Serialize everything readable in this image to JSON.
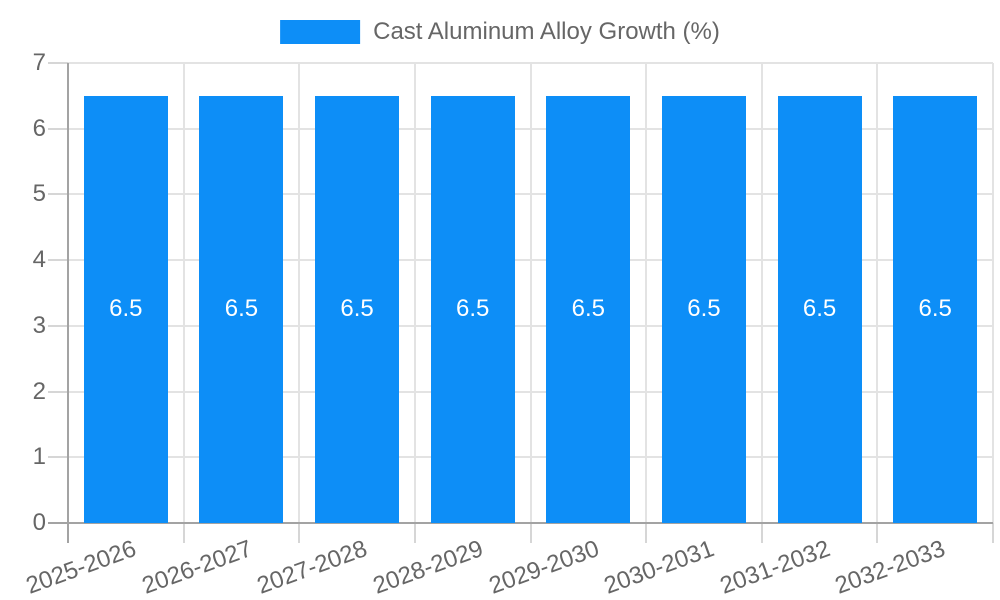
{
  "chart_data": {
    "type": "bar",
    "title": "",
    "categories": [
      "2025-2026",
      "2026-2027",
      "2027-2028",
      "2028-2029",
      "2029-2030",
      "2030-2031",
      "2031-2032",
      "2032-2033"
    ],
    "series": [
      {
        "name": "Cast Aluminum Alloy Growth (%)",
        "values": [
          6.5,
          6.5,
          6.5,
          6.5,
          6.5,
          6.5,
          6.5,
          6.5
        ]
      }
    ],
    "bar_value_labels": [
      "6.5",
      "6.5",
      "6.5",
      "6.5",
      "6.5",
      "6.5",
      "6.5",
      "6.5"
    ],
    "xlabel": "",
    "ylabel": "",
    "ylim": [
      0,
      7
    ],
    "ytick_step": 1,
    "ytick_labels": [
      "0",
      "1",
      "2",
      "3",
      "4",
      "5",
      "6",
      "7"
    ],
    "grid": true,
    "legend_position": "top-center",
    "x_label_rotation_deg": -20
  },
  "colors": {
    "bar": "#0d8ef7",
    "grid_line": "#e3e3e3",
    "light_tick": "#d6d6d6",
    "axis_line": "#a3a3a3",
    "tick_text": "#666666",
    "bar_label_text": "#ffffff",
    "background": "#ffffff"
  }
}
